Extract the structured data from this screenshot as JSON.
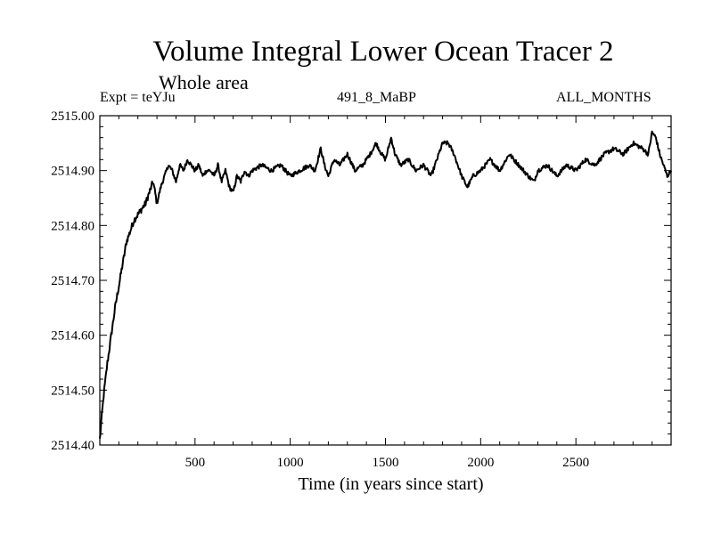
{
  "chart_data": {
    "type": "line",
    "title": "Volume Integral Lower Ocean Tracer 2",
    "subtitle": "Whole area",
    "experiment": "Expt = teYJu",
    "run_label": "491_8_MaBP",
    "months": "ALL_MONTHS",
    "xlabel": "Time (in years since start)",
    "ylabel": "",
    "xlim": [
      0,
      3000
    ],
    "ylim": [
      2514.4,
      2515.0
    ],
    "x_ticks": [
      500,
      1000,
      1500,
      2000,
      2500
    ],
    "x_tick_labels": [
      "500",
      "1000",
      "1500",
      "2000",
      "2500"
    ],
    "y_ticks": [
      2514.4,
      2514.5,
      2514.6,
      2514.7,
      2514.8,
      2514.9,
      2515.0
    ],
    "y_tick_labels": [
      "2514.40",
      "2514.50",
      "2514.60",
      "2514.70",
      "2514.80",
      "2514.90",
      "2515.00"
    ],
    "series": [
      {
        "name": "Lower Ocean Tracer 2",
        "x": [
          0,
          10,
          20,
          30,
          40,
          60,
          80,
          100,
          120,
          140,
          160,
          180,
          200,
          220,
          240,
          260,
          280,
          300,
          320,
          340,
          360,
          380,
          400,
          420,
          440,
          460,
          480,
          500,
          520,
          540,
          560,
          580,
          600,
          620,
          640,
          660,
          680,
          700,
          720,
          740,
          760,
          780,
          800,
          850,
          900,
          950,
          1000,
          1050,
          1100,
          1130,
          1160,
          1180,
          1200,
          1230,
          1260,
          1300,
          1340,
          1380,
          1420,
          1450,
          1480,
          1500,
          1530,
          1550,
          1580,
          1620,
          1660,
          1700,
          1740,
          1780,
          1800,
          1830,
          1860,
          1900,
          1930,
          1960,
          2000,
          2050,
          2100,
          2150,
          2200,
          2250,
          2280,
          2300,
          2350,
          2400,
          2450,
          2500,
          2550,
          2600,
          2650,
          2700,
          2750,
          2800,
          2850,
          2880,
          2900,
          2920,
          2940,
          2960,
          2980,
          3000
        ],
        "values": [
          2514.41,
          2514.45,
          2514.49,
          2514.52,
          2514.55,
          2514.6,
          2514.65,
          2514.69,
          2514.73,
          2514.77,
          2514.79,
          2514.81,
          2514.82,
          2514.83,
          2514.84,
          2514.86,
          2514.88,
          2514.84,
          2514.87,
          2514.89,
          2514.91,
          2514.9,
          2514.88,
          2514.91,
          2514.9,
          2514.92,
          2514.91,
          2514.9,
          2514.91,
          2514.89,
          2514.9,
          2514.9,
          2514.89,
          2514.91,
          2514.88,
          2514.9,
          2514.87,
          2514.86,
          2514.89,
          2514.88,
          2514.9,
          2514.89,
          2514.9,
          2514.91,
          2514.9,
          2514.91,
          2514.89,
          2514.9,
          2514.91,
          2514.9,
          2514.94,
          2514.91,
          2514.89,
          2514.92,
          2514.91,
          2514.93,
          2514.9,
          2514.91,
          2514.93,
          2514.95,
          2514.93,
          2514.92,
          2514.96,
          2514.93,
          2514.91,
          2514.92,
          2514.9,
          2514.91,
          2514.89,
          2514.93,
          2514.95,
          2514.95,
          2514.93,
          2514.89,
          2514.87,
          2514.89,
          2514.9,
          2514.92,
          2514.9,
          2514.93,
          2514.91,
          2514.89,
          2514.88,
          2514.9,
          2514.91,
          2514.89,
          2514.91,
          2514.9,
          2514.92,
          2514.91,
          2514.93,
          2514.94,
          2514.93,
          2514.95,
          2514.94,
          2514.93,
          2514.97,
          2514.96,
          2514.93,
          2514.91,
          2514.89,
          2514.9
        ]
      }
    ]
  }
}
